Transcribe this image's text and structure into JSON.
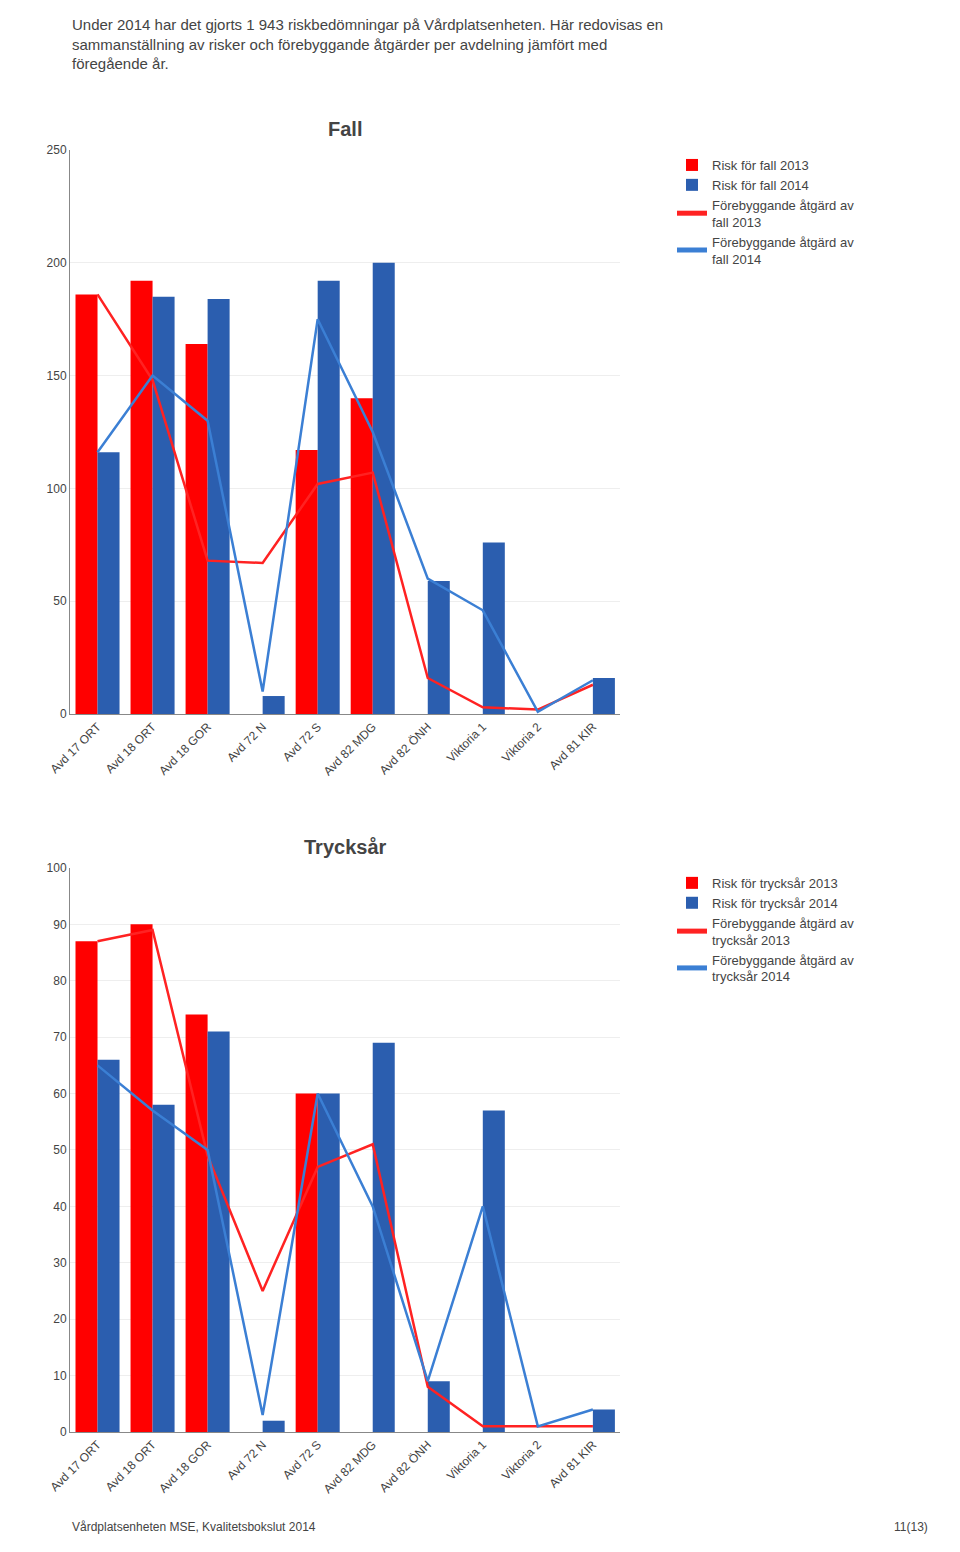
{
  "annotations": [
    "Under 2014 har det gjorts 1 943 riskbedömningar på Vårdplatsenheten. Här redovisas en\nsammanställning av risker och förebyggande åtgärder per avdelning jämfört med\nföregående år.",
    "Vårdplatsenheten MSE, Kvalitetsbokslut 2014",
    "11(13)"
  ],
  "chart_data": [
    {
      "type": "bar",
      "title": "Fall",
      "categories": [
        "Avd 17 ORT",
        "Avd 18 ORT",
        "Avd 18 GOR",
        "Avd 72 N",
        "Avd 72 S",
        "Avd 82 MDG",
        "Avd 82 ÖNH",
        "Viktoria 1",
        "Viktoria 2",
        "Avd 81 KIR"
      ],
      "series": [
        {
          "name": "Risk för fall 2013",
          "type": "bar",
          "color": "#FF0000",
          "values": [
            186,
            192,
            164,
            0,
            117,
            140,
            0,
            0,
            0,
            0
          ]
        },
        {
          "name": "Risk för fall 2014",
          "type": "bar",
          "color": "#2B5EAF",
          "values": [
            116,
            185,
            184,
            8,
            192,
            200,
            59,
            76,
            0,
            16
          ]
        },
        {
          "name": "Förebyggande åtgärd av\nfall 2013",
          "type": "line",
          "color": "#FF2222",
          "values": [
            186,
            148,
            68,
            67,
            102,
            107,
            16,
            3,
            2,
            13
          ]
        },
        {
          "name": "Förebyggande åtgärd av\nfall 2014",
          "type": "line",
          "color": "#3B7FD4",
          "values": [
            116,
            150,
            130,
            10,
            175,
            125,
            60,
            46,
            1,
            15
          ]
        }
      ],
      "ylim": [
        0,
        250
      ],
      "yticks": [
        0,
        50,
        100,
        150,
        200,
        250
      ],
      "grid": true
    },
    {
      "type": "bar",
      "title": "Trycksår",
      "categories": [
        "Avd 17 ORT",
        "Avd 18 ORT",
        "Avd 18 GOR",
        "Avd 72 N",
        "Avd 72 S",
        "Avd 82 MDG",
        "Avd 82 ÖNH",
        "Viktoria 1",
        "Viktoria 2",
        "Avd 81 KIR"
      ],
      "series": [
        {
          "name": "Risk för trycksår 2013",
          "type": "bar",
          "color": "#FF0000",
          "values": [
            87,
            90,
            74,
            0,
            60,
            0,
            0,
            0,
            0,
            0
          ]
        },
        {
          "name": "Risk för trycksår 2014",
          "type": "bar",
          "color": "#2B5EAF",
          "values": [
            66,
            58,
            71,
            2,
            60,
            69,
            9,
            57,
            0,
            4
          ]
        },
        {
          "name": "Förebyggande åtgärd av\ntrycksår 2013",
          "type": "line",
          "color": "#FF2222",
          "values": [
            87,
            89,
            49,
            25,
            47,
            51,
            8,
            1,
            1,
            1
          ]
        },
        {
          "name": "Förebyggande åtgärd av\ntrycksår 2014",
          "type": "line",
          "color": "#3B7FD4",
          "values": [
            65,
            57,
            50,
            3,
            60,
            40,
            9,
            40,
            1,
            4
          ]
        }
      ],
      "ylim": [
        0,
        100
      ],
      "yticks": [
        0,
        10,
        20,
        30,
        40,
        50,
        60,
        70,
        80,
        90,
        100
      ],
      "grid": true
    }
  ]
}
